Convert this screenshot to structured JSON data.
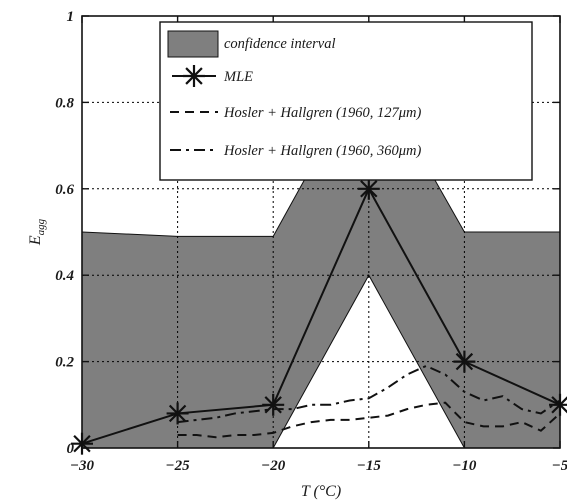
{
  "chart_data": {
    "type": "line",
    "xlabel": "T (°C)",
    "ylabel": "E_agg",
    "ylabel_main": "E",
    "ylabel_sub": "agg",
    "xlim": [
      -30,
      -5
    ],
    "ylim": [
      0,
      1
    ],
    "x_ticks": [
      -30,
      -25,
      -20,
      -15,
      -10,
      -5
    ],
    "x_tick_labels": [
      "−30",
      "−25",
      "−20",
      "−15",
      "−10",
      "−5"
    ],
    "y_ticks": [
      0,
      0.2,
      0.4,
      0.6,
      0.8,
      1
    ],
    "y_tick_labels": [
      "0",
      "0.2",
      "0.4",
      "0.6",
      "0.8",
      "1"
    ],
    "grid": true,
    "legend_position": "top-center",
    "colors": {
      "band": "#7f7f7f",
      "line": "#111111",
      "grid": "#000000"
    },
    "confidence_interval": {
      "name": "confidence interval",
      "x": [
        -30,
        -25,
        -20,
        -15,
        -10,
        -5
      ],
      "upper": [
        0.5,
        0.49,
        0.49,
        0.89,
        0.5,
        0.5
      ],
      "lower": [
        0,
        0,
        0,
        0.4,
        0,
        0
      ]
    },
    "series": [
      {
        "name": "MLE",
        "style": "solid-star",
        "x": [
          -30,
          -25,
          -20,
          -15,
          -10,
          -5
        ],
        "y": [
          0.01,
          0.08,
          0.1,
          0.6,
          0.2,
          0.1
        ]
      },
      {
        "name": "Hosler + Hallgren (1960, 127μm)",
        "style": "dashed",
        "x": [
          -25,
          -24,
          -23,
          -22,
          -21,
          -20,
          -19,
          -18,
          -17,
          -16,
          -15,
          -14,
          -13,
          -12,
          -11,
          -10,
          -9,
          -8,
          -7,
          -6,
          -5
        ],
        "y": [
          0.03,
          0.03,
          0.025,
          0.03,
          0.03,
          0.035,
          0.05,
          0.06,
          0.065,
          0.065,
          0.07,
          0.075,
          0.09,
          0.1,
          0.105,
          0.06,
          0.05,
          0.05,
          0.06,
          0.04,
          0.08
        ]
      },
      {
        "name": "Hosler + Hallgren (1960, 360μm)",
        "style": "dashdot",
        "x": [
          -25,
          -24,
          -23,
          -22,
          -21,
          -20,
          -19,
          -18,
          -17,
          -16,
          -15,
          -14,
          -13,
          -12,
          -11,
          -10,
          -9,
          -8,
          -7,
          -6,
          -5
        ],
        "y": [
          0.06,
          0.065,
          0.07,
          0.08,
          0.085,
          0.09,
          0.09,
          0.1,
          0.1,
          0.11,
          0.115,
          0.14,
          0.17,
          0.19,
          0.17,
          0.13,
          0.11,
          0.12,
          0.09,
          0.08,
          0.11
        ]
      }
    ],
    "legend": [
      {
        "key": "band",
        "label": "confidence interval"
      },
      {
        "key": "mle",
        "label": "MLE"
      },
      {
        "key": "dash",
        "label": "Hosler + Hallgren (1960, 127μm)"
      },
      {
        "key": "dashdot",
        "label": "Hosler + Hallgren (1960, 360μm)"
      }
    ]
  }
}
